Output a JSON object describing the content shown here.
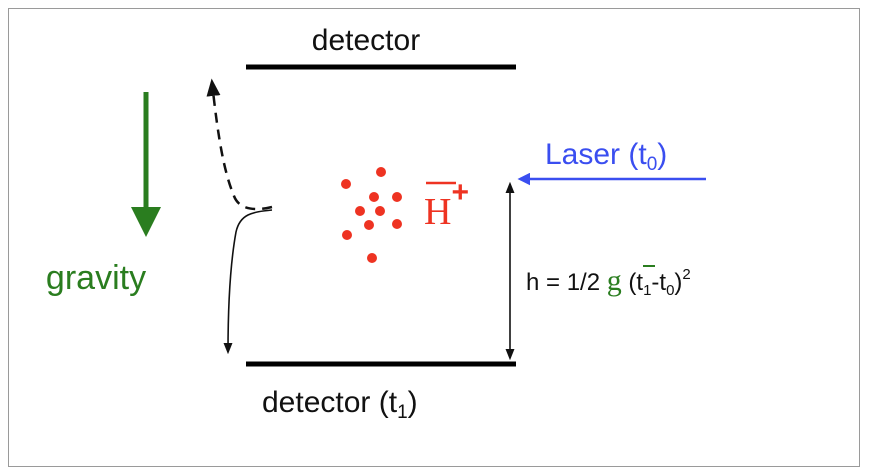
{
  "labels": {
    "top_detector": "detector",
    "bottom_detector": "detector (t",
    "bottom_detector_sub": "1",
    "bottom_detector_close": ")",
    "gravity": "gravity",
    "laser": "Laser (t",
    "laser_sub": "0",
    "laser_close": ")",
    "antihydrogen_ion": "H",
    "ion_charge": "+",
    "formula_prefix": "h = 1/2 ",
    "formula_g": "g",
    "formula_open": " (t",
    "formula_sub1": "1",
    "formula_mid": "-t",
    "formula_sub0": "0",
    "formula_close": ")",
    "formula_exp": "2"
  },
  "colors": {
    "gravity_green": "#2a7d1f",
    "laser_blue": "#3a4ef0",
    "ion_red": "#ee3322",
    "detector_black": "#000000"
  }
}
